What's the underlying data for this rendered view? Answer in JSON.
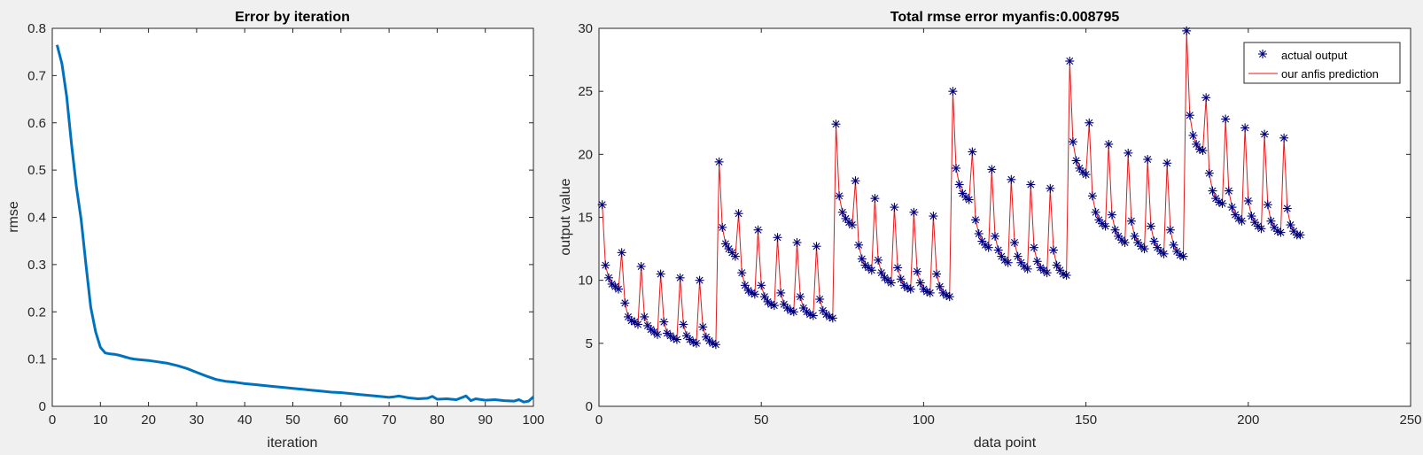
{
  "chart_data": [
    {
      "type": "line",
      "title": "Error by iteration",
      "xlabel": "iteration",
      "ylabel": "rmse",
      "xlim": [
        0,
        100
      ],
      "ylim": [
        0,
        0.8
      ],
      "xticks": [
        "0",
        "10",
        "20",
        "30",
        "40",
        "50",
        "60",
        "70",
        "80",
        "90",
        "100"
      ],
      "yticks": [
        "0",
        "0.1",
        "0.2",
        "0.3",
        "0.4",
        "0.5",
        "0.6",
        "0.7",
        "0.8"
      ],
      "grid": false,
      "color": "#0072bd",
      "series": [
        {
          "x": [
            1,
            2,
            3,
            4,
            5,
            6,
            7,
            8,
            9,
            10,
            11,
            12,
            13,
            14,
            15,
            16,
            17,
            18,
            19,
            20,
            22,
            24,
            26,
            28,
            30,
            32,
            34,
            36,
            38,
            40,
            42,
            44,
            46,
            48,
            50,
            52,
            54,
            56,
            58,
            60,
            62,
            64,
            66,
            68,
            70,
            71,
            72,
            74,
            76,
            78,
            79,
            80,
            82,
            84,
            86,
            87,
            88,
            90,
            92,
            94,
            96,
            97,
            98,
            99,
            100
          ],
          "y": [
            0.765,
            0.725,
            0.655,
            0.555,
            0.465,
            0.395,
            0.3,
            0.21,
            0.158,
            0.125,
            0.113,
            0.111,
            0.11,
            0.108,
            0.105,
            0.102,
            0.1,
            0.099,
            0.098,
            0.097,
            0.094,
            0.091,
            0.086,
            0.08,
            0.072,
            0.064,
            0.057,
            0.053,
            0.051,
            0.048,
            0.046,
            0.044,
            0.042,
            0.04,
            0.038,
            0.036,
            0.034,
            0.032,
            0.03,
            0.029,
            0.027,
            0.025,
            0.023,
            0.021,
            0.019,
            0.02,
            0.022,
            0.018,
            0.016,
            0.017,
            0.021,
            0.015,
            0.016,
            0.014,
            0.022,
            0.012,
            0.016,
            0.013,
            0.014,
            0.012,
            0.011,
            0.014,
            0.009,
            0.011,
            0.02
          ]
        }
      ]
    },
    {
      "type": "line",
      "title": "Total rmse error myanfis:0.008795",
      "xlabel": "data point",
      "ylabel": "output value",
      "xlim": [
        0,
        250
      ],
      "ylim": [
        0,
        30
      ],
      "xticks": [
        "0",
        "50",
        "100",
        "150",
        "200",
        "250"
      ],
      "yticks": [
        "0",
        "5",
        "10",
        "15",
        "20",
        "25",
        "30"
      ],
      "grid": false,
      "legend": "top-right",
      "series": [
        {
          "name": "actual output",
          "marker": "asterisk",
          "color": "#00007f",
          "values": [
            16.0,
            11.2,
            10.2,
            9.7,
            9.5,
            9.3,
            12.2,
            8.2,
            7.1,
            6.8,
            6.7,
            6.5,
            11.1,
            7.1,
            6.4,
            6.1,
            5.9,
            5.7,
            10.5,
            6.7,
            5.8,
            5.6,
            5.4,
            5.3,
            10.2,
            6.5,
            5.6,
            5.3,
            5.1,
            5.0,
            10.0,
            6.3,
            5.5,
            5.2,
            5.0,
            4.9,
            19.4,
            14.2,
            12.9,
            12.5,
            12.2,
            11.9,
            15.3,
            10.6,
            9.6,
            9.2,
            9.0,
            8.9,
            14.0,
            9.6,
            8.7,
            8.3,
            8.1,
            8.0,
            13.4,
            9.0,
            8.1,
            7.8,
            7.6,
            7.5,
            13.0,
            8.7,
            7.8,
            7.5,
            7.3,
            7.2,
            12.7,
            8.5,
            7.6,
            7.3,
            7.1,
            7.0,
            22.4,
            16.7,
            15.4,
            14.9,
            14.6,
            14.4,
            17.9,
            12.8,
            11.7,
            11.2,
            11.0,
            10.8,
            16.5,
            11.6,
            10.6,
            10.2,
            10.0,
            9.8,
            15.8,
            11.0,
            10.1,
            9.6,
            9.4,
            9.3,
            15.4,
            10.7,
            9.8,
            9.3,
            9.1,
            9.0,
            15.1,
            10.5,
            9.5,
            9.0,
            8.8,
            8.7,
            25.0,
            18.9,
            17.6,
            16.9,
            16.6,
            16.4,
            20.2,
            14.8,
            13.7,
            13.1,
            12.8,
            12.6,
            18.8,
            13.5,
            12.4,
            11.9,
            11.6,
            11.4,
            18.0,
            13.0,
            11.9,
            11.4,
            11.1,
            10.9,
            17.6,
            12.6,
            11.5,
            11.0,
            10.8,
            10.6,
            17.3,
            12.4,
            11.2,
            10.8,
            10.5,
            10.4,
            27.4,
            21.0,
            19.5,
            18.9,
            18.6,
            18.4,
            22.5,
            16.7,
            15.4,
            14.8,
            14.5,
            14.3,
            20.8,
            15.2,
            14.0,
            13.5,
            13.2,
            13.0,
            20.1,
            14.7,
            13.5,
            13.0,
            12.7,
            12.5,
            19.6,
            14.3,
            13.1,
            12.6,
            12.3,
            12.1,
            19.3,
            14.0,
            12.8,
            12.3,
            12.0,
            11.9,
            29.8,
            23.1,
            21.5,
            20.8,
            20.4,
            20.3,
            24.5,
            18.5,
            17.1,
            16.5,
            16.2,
            16.1,
            22.8,
            17.1,
            15.8,
            15.2,
            14.9,
            14.7,
            22.1,
            16.3,
            15.1,
            14.6,
            14.3,
            14.1,
            21.6,
            16.0,
            14.7,
            14.2,
            13.9,
            13.8,
            21.3,
            15.7,
            14.4,
            13.9,
            13.6,
            13.6
          ]
        },
        {
          "name": "our anfis prediction",
          "marker": "line",
          "color": "#e31a1c",
          "same_as": "actual output"
        }
      ]
    }
  ]
}
